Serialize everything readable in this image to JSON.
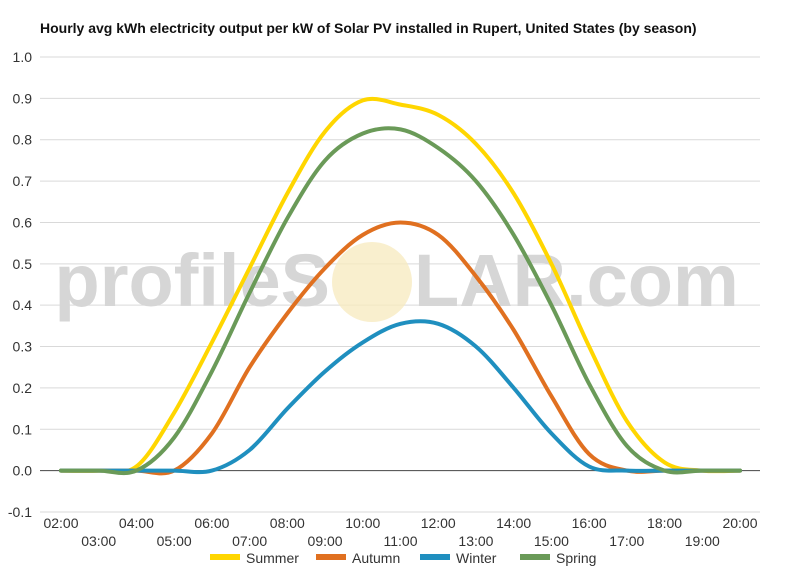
{
  "chart_data": {
    "type": "line",
    "title": "Hourly avg kWh electricity output per kW of Solar PV installed in Rupert, United States (by season)",
    "xlabel": "",
    "ylabel": "",
    "ylim": [
      -0.1,
      1.0
    ],
    "yticks": [
      "-0.1",
      "0.0",
      "0.1",
      "0.2",
      "0.3",
      "0.4",
      "0.5",
      "0.6",
      "0.7",
      "0.8",
      "0.9",
      "1.0"
    ],
    "x": [
      "02:00",
      "03:00",
      "04:00",
      "05:00",
      "06:00",
      "07:00",
      "08:00",
      "09:00",
      "10:00",
      "11:00",
      "12:00",
      "13:00",
      "14:00",
      "15:00",
      "16:00",
      "17:00",
      "18:00",
      "19:00",
      "20:00"
    ],
    "grid": true,
    "legend_position": "bottom",
    "series": [
      {
        "name": "Summer",
        "color": "#ffd600",
        "values": [
          0.0,
          0.0,
          0.01,
          0.14,
          0.31,
          0.49,
          0.67,
          0.82,
          0.895,
          0.885,
          0.86,
          0.79,
          0.67,
          0.5,
          0.3,
          0.12,
          0.02,
          0.0,
          0.0
        ]
      },
      {
        "name": "Autumn",
        "color": "#e07020",
        "values": [
          0.0,
          0.0,
          0.0,
          0.0,
          0.09,
          0.25,
          0.38,
          0.49,
          0.57,
          0.6,
          0.57,
          0.47,
          0.34,
          0.18,
          0.04,
          0.0,
          0.0,
          0.0,
          0.0
        ]
      },
      {
        "name": "Winter",
        "color": "#1f8fbf",
        "values": [
          0.0,
          0.0,
          0.0,
          0.0,
          0.0,
          0.05,
          0.15,
          0.24,
          0.31,
          0.355,
          0.355,
          0.3,
          0.2,
          0.09,
          0.01,
          0.0,
          0.0,
          0.0,
          0.0
        ]
      },
      {
        "name": "Spring",
        "color": "#6a9a58",
        "values": [
          0.0,
          0.0,
          0.0,
          0.08,
          0.24,
          0.43,
          0.61,
          0.75,
          0.815,
          0.825,
          0.78,
          0.7,
          0.57,
          0.4,
          0.21,
          0.06,
          0.0,
          0.0,
          0.0
        ]
      }
    ]
  },
  "watermark": {
    "left": "profileS",
    "right": "LAR.com"
  }
}
